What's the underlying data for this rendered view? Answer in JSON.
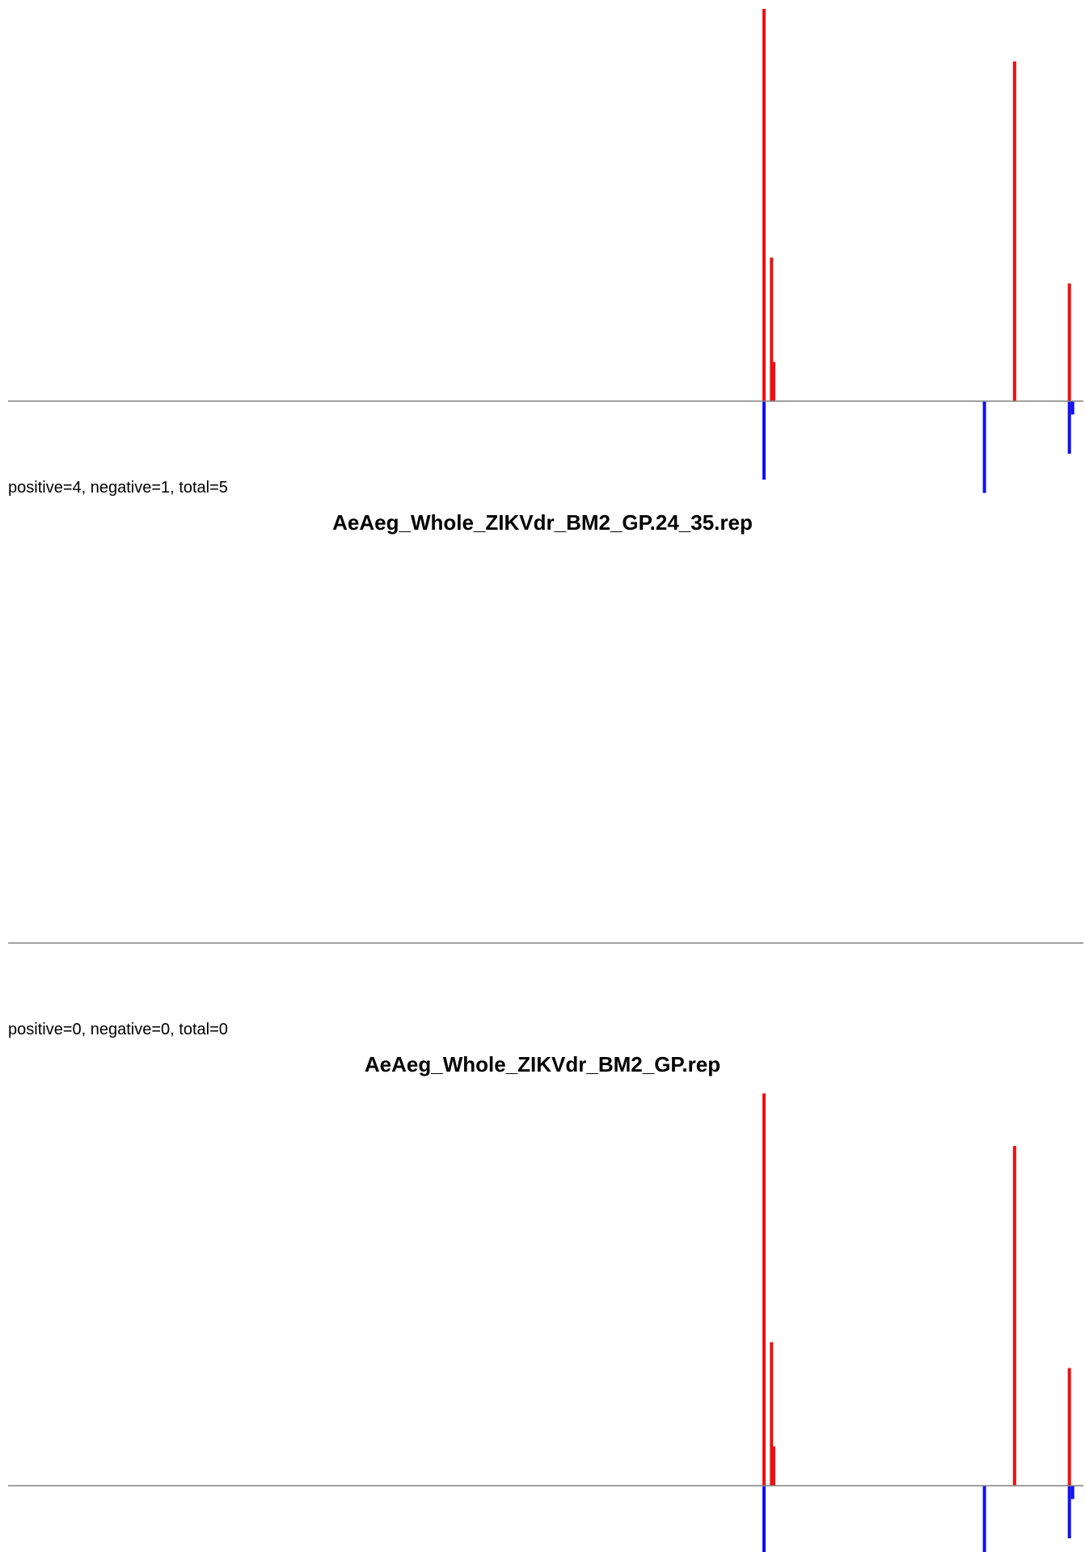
{
  "chart_data": [
    {
      "type": "bar",
      "title": "",
      "summary": "positive=4, negative=1, total=5",
      "colors": {
        "positive": "#ee1111",
        "negative": "#1111ee",
        "baseline": "#808080"
      },
      "xlim": [
        0,
        1000
      ],
      "ylim": [
        -1,
        5
      ],
      "positive": [
        {
          "x": 703,
          "value": 5.0
        },
        {
          "x": 710,
          "value": 1.83
        },
        {
          "x": 712,
          "value": 0.5
        },
        {
          "x": 936,
          "value": 4.33
        },
        {
          "x": 987,
          "value": 1.5
        }
      ],
      "negative": [
        {
          "x": 703,
          "value": 1.0
        },
        {
          "x": 908,
          "value": 1.17
        },
        {
          "x": 987,
          "value": 0.67
        },
        {
          "x": 990,
          "value": 0.17
        }
      ]
    },
    {
      "type": "bar",
      "title": "AeAeg_Whole_ZIKVdr_BM2_GP.24_35.rep",
      "summary": "positive=0, negative=0, total=0",
      "colors": {
        "positive": "#ee1111",
        "negative": "#1111ee",
        "baseline": "#808080"
      },
      "xlim": [
        0,
        1000
      ],
      "ylim": [
        -1,
        5
      ],
      "positive": [],
      "negative": []
    },
    {
      "type": "bar",
      "title": "AeAeg_Whole_ZIKVdr_BM2_GP.rep",
      "summary": "",
      "colors": {
        "positive": "#ee1111",
        "negative": "#1111ee",
        "baseline": "#808080"
      },
      "xlim": [
        0,
        1000
      ],
      "ylim": [
        -1,
        5
      ],
      "positive": [
        {
          "x": 703,
          "value": 5.0
        },
        {
          "x": 710,
          "value": 1.83
        },
        {
          "x": 712,
          "value": 0.5
        },
        {
          "x": 936,
          "value": 4.33
        },
        {
          "x": 987,
          "value": 1.5
        }
      ],
      "negative": [
        {
          "x": 703,
          "value": 1.0
        },
        {
          "x": 908,
          "value": 1.17
        },
        {
          "x": 987,
          "value": 0.67
        },
        {
          "x": 990,
          "value": 0.17
        }
      ]
    }
  ]
}
